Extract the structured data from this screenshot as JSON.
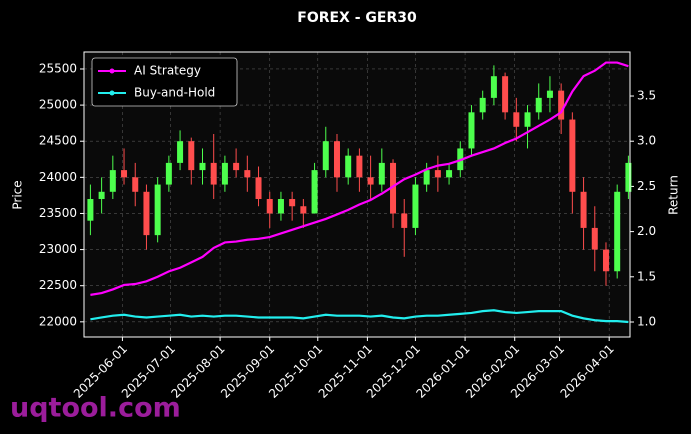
{
  "chart_data": {
    "type": "candlestick",
    "title": "FOREX - GER30",
    "ylabel": "Price",
    "y2label": "Return",
    "watermark": "uqtool.com",
    "x": [
      "2025-05-12",
      "2025-05-19",
      "2025-05-26",
      "2025-06-02",
      "2025-06-09",
      "2025-06-16",
      "2025-06-23",
      "2025-06-30",
      "2025-07-07",
      "2025-07-14",
      "2025-07-21",
      "2025-07-28",
      "2025-08-04",
      "2025-08-11",
      "2025-08-18",
      "2025-08-25",
      "2025-09-01",
      "2025-09-08",
      "2025-09-15",
      "2025-09-22",
      "2025-09-29",
      "2025-10-06",
      "2025-10-13",
      "2025-10-20",
      "2025-10-27",
      "2025-11-03",
      "2025-11-10",
      "2025-11-17",
      "2025-11-24",
      "2025-12-01",
      "2025-12-08",
      "2025-12-15",
      "2025-12-22",
      "2025-12-29",
      "2026-01-05",
      "2026-01-12",
      "2026-01-19",
      "2026-01-26",
      "2026-02-02",
      "2026-02-09",
      "2026-02-16",
      "2026-02-23",
      "2026-03-02",
      "2026-03-09",
      "2026-03-16",
      "2026-03-23",
      "2026-03-30",
      "2026-04-06",
      "2026-04-13"
    ],
    "open": [
      23400,
      23700,
      23800,
      24100,
      24000,
      23800,
      23200,
      23900,
      24200,
      24500,
      24100,
      24200,
      23900,
      24200,
      24100,
      24000,
      23700,
      23500,
      23700,
      23600,
      23500,
      24100,
      24500,
      24000,
      24300,
      24000,
      23900,
      24200,
      23500,
      23300,
      23900,
      24100,
      24000,
      24100,
      24400,
      24900,
      25100,
      25400,
      24900,
      24700,
      24900,
      25100,
      25200,
      24800,
      23800,
      23300,
      23000,
      22700,
      23800
    ],
    "high": [
      23900,
      24000,
      24300,
      24400,
      24200,
      23900,
      24000,
      24300,
      24650,
      24550,
      24400,
      24600,
      24300,
      24400,
      24300,
      24150,
      23800,
      23800,
      23800,
      23700,
      24200,
      24700,
      24600,
      24400,
      24400,
      24300,
      24400,
      24250,
      23700,
      24000,
      24200,
      24300,
      24200,
      24500,
      25000,
      25200,
      25550,
      25450,
      25100,
      25000,
      25300,
      25400,
      25300,
      24900,
      24000,
      23600,
      23100,
      23900,
      24300
    ],
    "low": [
      23200,
      23500,
      23700,
      23900,
      23600,
      23000,
      23100,
      23800,
      24100,
      23900,
      23900,
      23700,
      23800,
      24000,
      23800,
      23600,
      23300,
      23400,
      23400,
      23300,
      23500,
      24000,
      23800,
      23900,
      23800,
      23700,
      23800,
      23300,
      22900,
      23200,
      23800,
      23800,
      23900,
      24000,
      24300,
      24800,
      25000,
      24800,
      24500,
      24400,
      24800,
      24900,
      24600,
      23500,
      23000,
      22700,
      22500,
      22600,
      23700
    ],
    "close": [
      23700,
      23800,
      24100,
      24000,
      23800,
      23200,
      23900,
      24200,
      24500,
      24100,
      24200,
      23900,
      24200,
      24100,
      24000,
      23700,
      23500,
      23700,
      23600,
      23500,
      24100,
      24500,
      24000,
      24300,
      24000,
      23900,
      24200,
      23500,
      23300,
      23900,
      24100,
      24000,
      24100,
      24400,
      24900,
      25100,
      25400,
      24900,
      24700,
      24900,
      25100,
      25200,
      24800,
      23800,
      23300,
      23000,
      22700,
      23800,
      24200
    ],
    "up_color": "#4dff4d",
    "down_color": "#ff4d4d",
    "series": [
      {
        "name": "AI Strategy",
        "color": "#ff00ff",
        "axis": "y2",
        "values": [
          1.3,
          1.32,
          1.36,
          1.41,
          1.42,
          1.45,
          1.5,
          1.56,
          1.6,
          1.66,
          1.72,
          1.82,
          1.88,
          1.89,
          1.91,
          1.92,
          1.94,
          1.98,
          2.02,
          2.06,
          2.1,
          2.14,
          2.19,
          2.24,
          2.3,
          2.35,
          2.42,
          2.5,
          2.58,
          2.63,
          2.69,
          2.73,
          2.75,
          2.79,
          2.84,
          2.88,
          2.92,
          2.98,
          3.03,
          3.1,
          3.17,
          3.24,
          3.32,
          3.55,
          3.72,
          3.78,
          3.87,
          3.87,
          3.83
        ]
      },
      {
        "name": "Buy-and-Hold",
        "color": "#22eeee",
        "axis": "y2",
        "values": [
          1.03,
          1.05,
          1.07,
          1.08,
          1.06,
          1.05,
          1.06,
          1.07,
          1.08,
          1.06,
          1.07,
          1.06,
          1.07,
          1.07,
          1.06,
          1.05,
          1.05,
          1.05,
          1.05,
          1.04,
          1.06,
          1.08,
          1.07,
          1.07,
          1.07,
          1.06,
          1.07,
          1.05,
          1.04,
          1.06,
          1.07,
          1.07,
          1.08,
          1.09,
          1.1,
          1.12,
          1.13,
          1.11,
          1.1,
          1.11,
          1.12,
          1.12,
          1.12,
          1.07,
          1.04,
          1.02,
          1.01,
          1.01,
          1.0
        ]
      }
    ],
    "xlim": [
      "2025-05-08",
      "2026-04-14"
    ],
    "xticks": [
      "2025-06-01",
      "2025-07-01",
      "2025-08-01",
      "2025-09-01",
      "2025-10-01",
      "2025-11-01",
      "2025-12-01",
      "2026-01-01",
      "2026-02-01",
      "2026-03-01",
      "2026-04-01"
    ],
    "ylim": [
      21790,
      25735
    ],
    "yticks": [
      22000,
      22500,
      23000,
      23500,
      24000,
      24500,
      25000,
      25500
    ],
    "y2lim": [
      0.834,
      3.987
    ],
    "y2ticks": [
      {
        "value": 1,
        "label": "1.0"
      },
      {
        "value": 1.5,
        "label": "1.5"
      },
      {
        "value": 2,
        "label": "2.0"
      },
      {
        "value": 2.5,
        "label": "2.5"
      },
      {
        "value": 3,
        "label": "3.0"
      },
      {
        "value": 3.5,
        "label": "3.5"
      }
    ],
    "grid": true,
    "legend": "upper left"
  }
}
